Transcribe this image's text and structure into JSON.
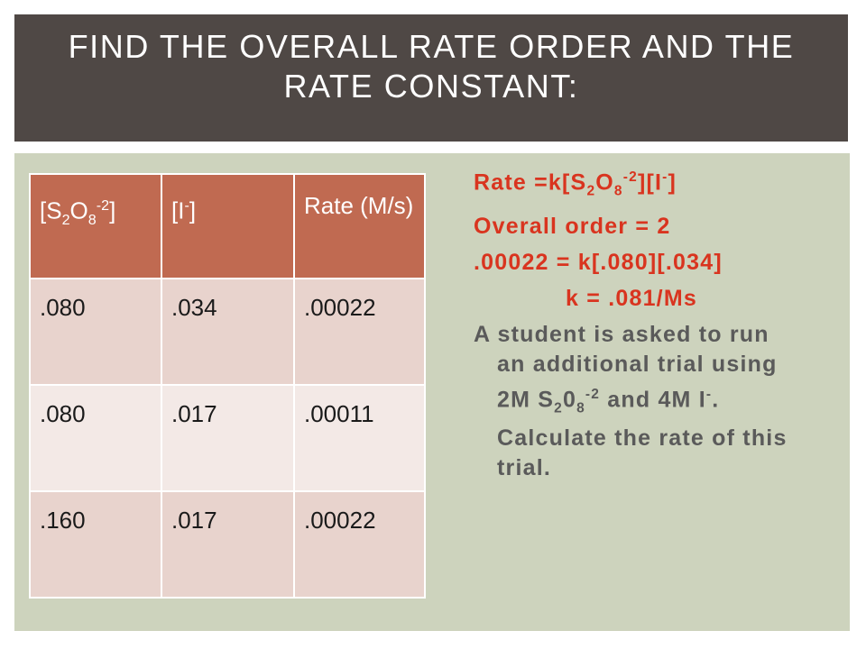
{
  "header": {
    "title": "FIND THE OVERALL RATE ORDER AND THE RATE CONSTANT:"
  },
  "table": {
    "header": [
      [
        "[S",
        {
          "sub": "2"
        },
        "O",
        {
          "sub": "8"
        },
        {
          "sup": "-2"
        },
        "]"
      ],
      [
        "[I",
        {
          "sup": "-"
        },
        "]"
      ],
      [
        "Rate (M/s)"
      ]
    ],
    "rows": [
      [
        ".080",
        ".034",
        ".00022"
      ],
      [
        ".080",
        ".017",
        ".00011"
      ],
      [
        ".160",
        ".017",
        ".00022"
      ]
    ]
  },
  "notes": [
    {
      "color": "#d9341f",
      "align": "left",
      "runs": [
        "Rate =k[S",
        {
          "sub": "2"
        },
        "O",
        {
          "sub": "8"
        },
        {
          "sup": "-2"
        },
        "][I",
        {
          "sup": "-"
        },
        "]"
      ]
    },
    {
      "color": "#d9341f",
      "align": "left",
      "runs": [
        "Overall order = 2"
      ]
    },
    {
      "color": "#d9341f",
      "align": "left",
      "runs": [
        ".00022 = k[.080][.034]"
      ]
    },
    {
      "color": "#d9341f",
      "align": "center",
      "runs": [
        "k = .081/Ms"
      ]
    },
    {
      "color": "#5a5a5a",
      "align": "left",
      "runs": [
        "A student is asked to run an additional trial using 2M S",
        {
          "sub": "2"
        },
        "0",
        {
          "sub": "8"
        },
        {
          "sup": "-2"
        },
        " and 4M I",
        {
          "sup": "-"
        },
        ". Calculate the rate of this trial."
      ]
    }
  ]
}
